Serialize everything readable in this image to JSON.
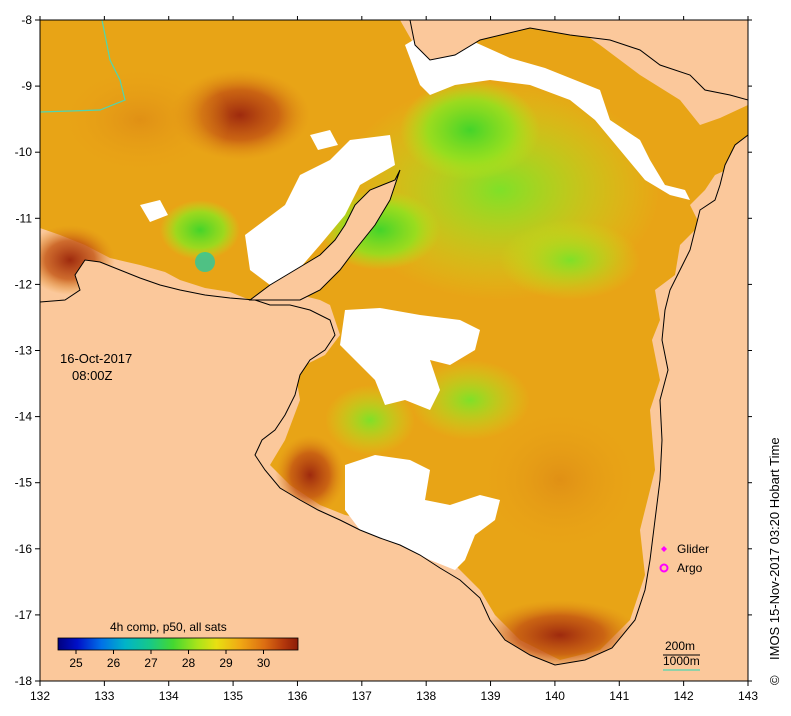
{
  "map": {
    "date": "16-Oct-2017",
    "time": "08:00Z",
    "x_ticks": [
      "132",
      "133",
      "134",
      "135",
      "136",
      "137",
      "138",
      "139",
      "140",
      "141",
      "142",
      "143"
    ],
    "y_ticks": [
      "-8",
      "-9",
      "-10",
      "-11",
      "-12",
      "-13",
      "-14",
      "-15",
      "-16",
      "-17",
      "-18"
    ],
    "lon_range": [
      132,
      143
    ],
    "lat_range": [
      -18,
      -8
    ],
    "colorbar": {
      "title": "4h comp, p50, all sats",
      "labels": [
        "25",
        "26",
        "27",
        "28",
        "29",
        "30"
      ]
    },
    "legend": {
      "glider": "Glider",
      "argo": "Argo",
      "depth_200": "200m",
      "depth_1000": "1000m"
    },
    "credit": "IMOS 15-Nov-2017 03:20 Hobart Time",
    "copyright": "©",
    "colors": {
      "land": "#fbc89b",
      "no_data": "#ffffff",
      "glider": "#ff00ff",
      "argo": "#ff00ff",
      "isobath_200": "#000000",
      "isobath_1000": "#4fd6b0"
    }
  }
}
